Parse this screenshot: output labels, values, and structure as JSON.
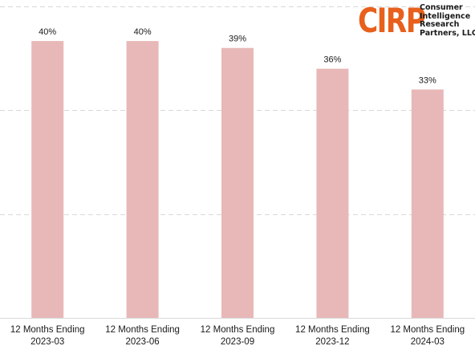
{
  "chart_data": {
    "type": "bar",
    "title": "",
    "xlabel": "",
    "ylabel": "",
    "categories": [
      [
        "12 Months Ending",
        "2023-03"
      ],
      [
        "12 Months Ending",
        "2023-06"
      ],
      [
        "12 Months Ending",
        "2023-09"
      ],
      [
        "12 Months Ending",
        "2023-12"
      ],
      [
        "12 Months Ending",
        "2024-03"
      ]
    ],
    "series": [
      {
        "values": [
          40,
          40,
          39,
          36,
          33
        ],
        "labels": [
          "40%",
          "40%",
          "39%",
          "36%",
          "33%"
        ]
      }
    ],
    "ylim": [
      0,
      45
    ],
    "grid": true,
    "bar_color": "#e8b8b8",
    "grid_color": "#d9d9d9"
  },
  "logo": {
    "mark": "CIRP",
    "mark_color": "#e8601c",
    "lines": [
      "Consumer",
      "Intelligence",
      "Research",
      "Partners, LLC"
    ]
  }
}
